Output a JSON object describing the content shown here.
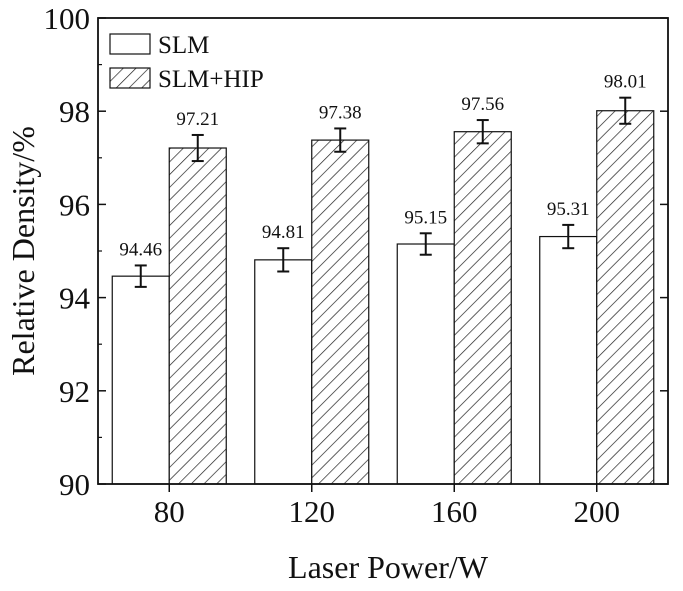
{
  "chart_data": {
    "type": "bar",
    "title": "",
    "xlabel": "Laser Power/W",
    "ylabel": "Relative Density/%",
    "ylim": [
      90,
      100
    ],
    "yticks": [
      90,
      92,
      94,
      96,
      98,
      100
    ],
    "categories": [
      "80",
      "120",
      "160",
      "200"
    ],
    "series": [
      {
        "name": "SLM",
        "pattern": "solid-white",
        "values": [
          94.46,
          94.81,
          95.15,
          95.31
        ],
        "labels": [
          "94.46",
          "94.81",
          "95.15",
          "95.31"
        ],
        "error": [
          0.23,
          0.25,
          0.23,
          0.25
        ]
      },
      {
        "name": "SLM+HIP",
        "pattern": "diagonal-hatch",
        "values": [
          97.21,
          97.38,
          97.56,
          98.01
        ],
        "labels": [
          "97.21",
          "97.38",
          "97.56",
          "98.01"
        ],
        "error": [
          0.28,
          0.25,
          0.25,
          0.28
        ]
      }
    ],
    "grid": false,
    "legend_position": "top-left",
    "colors": {
      "axis": "#111111",
      "bar_fill": "#ffffff",
      "hatch": "#222222"
    }
  }
}
